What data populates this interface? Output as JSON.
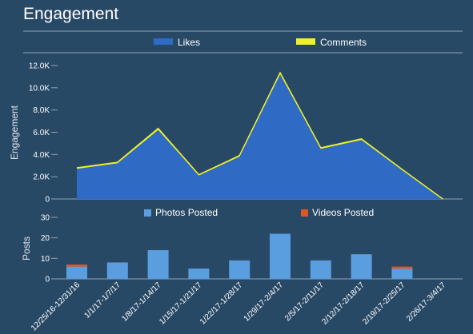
{
  "title": "Engagement",
  "colors": {
    "background": "#284966",
    "likes": "#2f6bc4",
    "comments": "#f0f028",
    "photos": "#5b9ee0",
    "videos": "#e0561f",
    "rule": "#8ea4b8"
  },
  "chart_data": [
    {
      "type": "area",
      "ylabel": "Engagement",
      "ylim": [
        0,
        12000
      ],
      "yticks": [
        "0",
        "2.0K",
        "4.0K",
        "6.0K",
        "8.0K",
        "10.0K",
        "12.0K"
      ],
      "legend_position": "top",
      "categories": [
        "12/25/16-12/31/16",
        "1/1/17-1/7/17",
        "1/8/17-1/14/17",
        "1/15/17-1/21/17",
        "1/22/17-1/28/17",
        "1/29/17-2/4/17",
        "2/5/17-2/11/17",
        "2/12/17-2/18/17",
        "2/19/17-2/25/17",
        "2/26/17-3/4/17"
      ],
      "series": [
        {
          "name": "Likes",
          "values": [
            2700,
            3200,
            6200,
            2100,
            3800,
            11200,
            4500,
            5300,
            2600,
            0
          ]
        },
        {
          "name": "Comments",
          "values": [
            100,
            100,
            150,
            80,
            100,
            150,
            100,
            100,
            60,
            0
          ]
        }
      ]
    },
    {
      "type": "bar",
      "stacked": true,
      "ylabel": "Posts",
      "ylim": [
        0,
        30
      ],
      "yticks": [
        "0",
        "10",
        "20",
        "30"
      ],
      "legend_position": "top",
      "categories": [
        "12/25/16-12/31/16",
        "1/1/17-1/7/17",
        "1/8/17-1/14/17",
        "1/15/17-1/21/17",
        "1/22/17-1/28/17",
        "1/29/17-2/4/17",
        "2/5/17-2/11/17",
        "2/12/17-2/18/17",
        "2/19/17-2/25/17",
        "2/26/17-3/4/17"
      ],
      "series": [
        {
          "name": "Photos Posted",
          "values": [
            6,
            8,
            14,
            5,
            9,
            22,
            9,
            12,
            5,
            0
          ]
        },
        {
          "name": "Videos Posted",
          "values": [
            1,
            0,
            0,
            0,
            0,
            0,
            0,
            0,
            1,
            0
          ]
        }
      ]
    }
  ]
}
